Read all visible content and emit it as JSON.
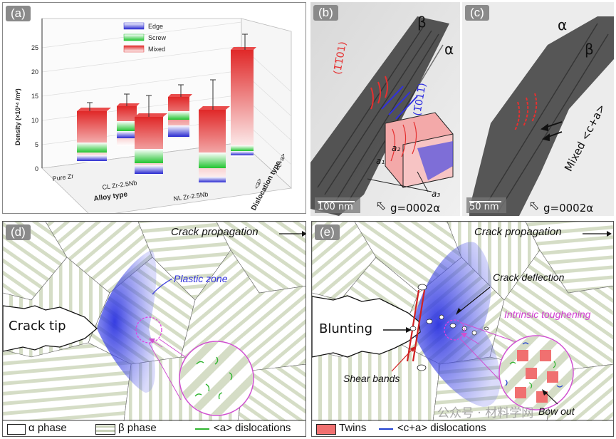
{
  "panel_a": {
    "label": "(a)",
    "y_axis_label": "Density (×10¹⁴ /m²)",
    "y_ticks": [
      "0",
      "5",
      "10",
      "15",
      "20",
      "25"
    ],
    "x_axis_label": "Alloy type",
    "alloys": [
      "Pure Zr",
      "CL Zr-2.5Nb",
      "NL Zr-2.5Nb"
    ],
    "depth_axis_label": "Dislocation type",
    "dislocation_types": [
      "<a>",
      "<c+a>"
    ],
    "legend": [
      "Edge",
      "Screw",
      "Mixed"
    ],
    "colors": {
      "edge": "#3b3bdb",
      "screw": "#2fcf3a",
      "mixed": "#e53030"
    }
  },
  "panel_b": {
    "label": "(b)",
    "beta": "β",
    "alpha": "α",
    "plane_red": "(1̅1̅01)",
    "plane_blue": "(1̅011̅)",
    "axis_a1": "a₁",
    "axis_a2": "a₂",
    "axis_a3": "a₃",
    "scale": "100 nm",
    "g_vector": "g=0002α"
  },
  "panel_c": {
    "label": "(c)",
    "alpha": "α",
    "beta": "β",
    "annotation": "Mixed <c+a>",
    "scale": "50 nm",
    "g_vector": "g=0002α"
  },
  "panel_d": {
    "label": "(d)",
    "crack_propagation": "Crack propagation",
    "crack_tip": "Crack tip",
    "plastic_zone": "Plastic zone"
  },
  "panel_e": {
    "label": "(e)",
    "crack_propagation": "Crack propagation",
    "blunting": "Blunting",
    "crack_deflection": "Crack deflection",
    "intrinsic_toughening": "Intrinsic toughening",
    "shear_bands": "Shear bands",
    "bow_out": "Bow out"
  },
  "legend_bottom_left": {
    "alpha_phase": "α phase",
    "beta_phase": "β phase",
    "a_dislocations": "<a> dislocations"
  },
  "legend_bottom_right": {
    "twins": "Twins",
    "ca_dislocations": "<c+a> dislocations"
  },
  "watermark": "公众号 · 材料学网"
}
